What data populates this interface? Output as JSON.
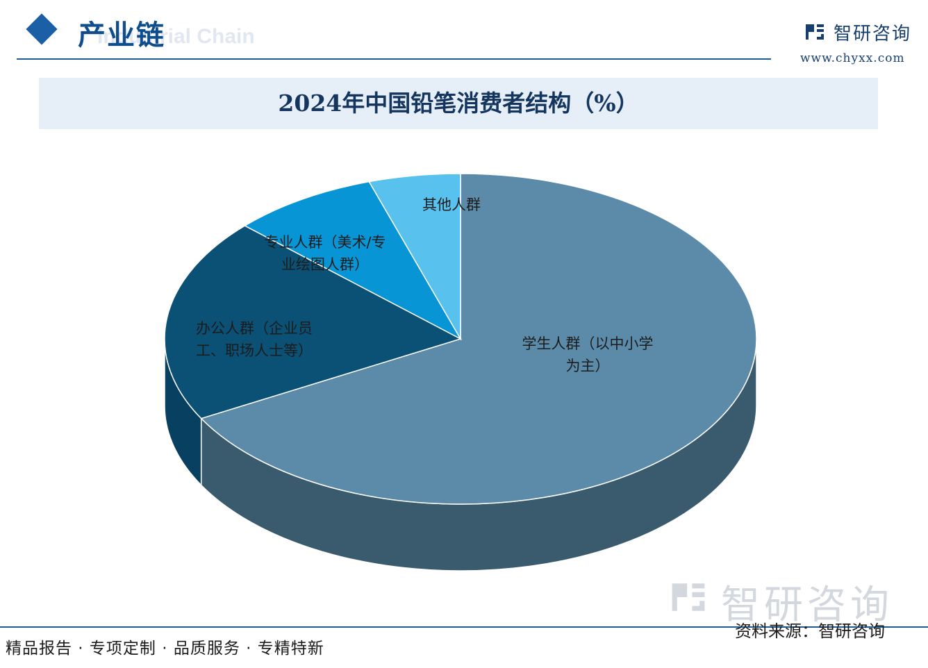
{
  "header": {
    "section_title": "产业链",
    "section_subtitle": "Industrial Chain",
    "brand_name": "智研咨询",
    "brand_url": "www.chyxx.com"
  },
  "chart_title": "2024年中国铅笔消费者结构（%）",
  "chart_data": {
    "type": "pie",
    "title": "2024年中国铅笔消费者结构（%）",
    "categories": [
      [
        "学生人群（以中小学",
        "为主）"
      ],
      [
        "办公人群（企业员",
        "工、职场人士等）"
      ],
      [
        "专业人群（美术/专",
        "业绘图人群）"
      ],
      [
        "其他人群"
      ]
    ],
    "values": [
      67,
      20,
      8,
      5
    ],
    "colors": [
      "#5b8ba8",
      "#0b5075",
      "#0795d6",
      "#58c1ee"
    ],
    "side_colors": [
      "#3a5a6e",
      "#074060",
      "#046aa0",
      "#3ea0cc"
    ]
  },
  "footer": {
    "tagline": "精品报告 · 专项定制 · 品质服务 · 专精特新",
    "watermark_name": "智研咨询",
    "source": "资料来源：智研咨询"
  }
}
